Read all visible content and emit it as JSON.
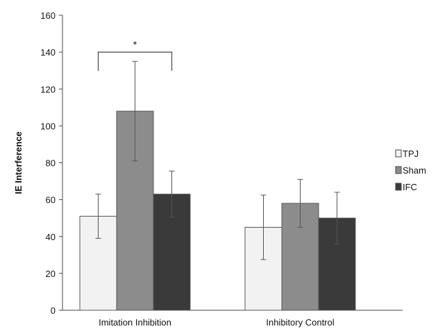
{
  "chart_data": {
    "type": "bar",
    "title": "",
    "xlabel": "",
    "ylabel": "IE Interference",
    "ylim": [
      0,
      160
    ],
    "yticks": [
      0,
      20,
      40,
      60,
      80,
      100,
      120,
      140,
      160
    ],
    "grid": false,
    "legend_position": "right",
    "categories": [
      "Imitation Inhibition",
      "Inhibitory Control"
    ],
    "series": [
      {
        "name": "TPJ",
        "color": "#f2f2f2",
        "values": [
          51,
          45
        ],
        "error": [
          12,
          17.5
        ]
      },
      {
        "name": "Sham",
        "color": "#8c8c8c",
        "values": [
          108,
          58
        ],
        "error": [
          27,
          13
        ]
      },
      {
        "name": "IFC",
        "color": "#3a3a3a",
        "values": [
          63,
          50
        ],
        "error": [
          12.5,
          14
        ]
      }
    ],
    "annotations": [
      {
        "text": "*",
        "category": "Imitation Inhibition",
        "from_series": "TPJ",
        "to_series": "IFC",
        "value": 140
      }
    ]
  }
}
